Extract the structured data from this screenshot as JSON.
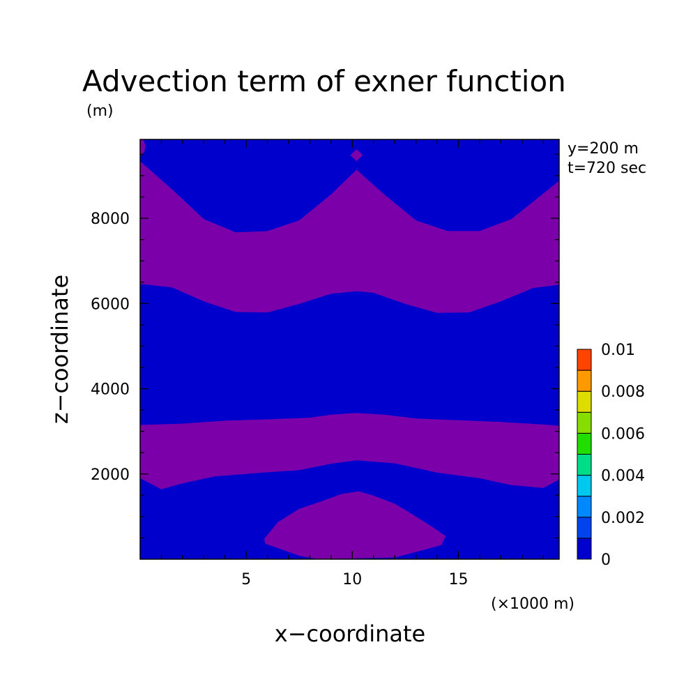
{
  "chart_data": {
    "type": "heatmap",
    "title": "Advection term of exner function",
    "ylabel_unit": "(m)",
    "xlabel": "x−coordinate",
    "ylabel": "z−coordinate",
    "x_unit": "(×1000 m)",
    "annotations": [
      "y=200 m",
      "t=720 sec"
    ],
    "xlim": [
      0,
      19.75
    ],
    "ylim": [
      0,
      9850
    ],
    "x_ticks": [
      5,
      10,
      15
    ],
    "x_tick_labels": [
      "5",
      "10",
      "15"
    ],
    "y_ticks": [
      2000,
      4000,
      6000,
      8000
    ],
    "y_tick_labels": [
      "2000",
      "4000",
      "6000",
      "8000"
    ],
    "grid": false,
    "colorbar": {
      "placement": "right",
      "levels": [
        0,
        0.001,
        0.002,
        0.003,
        0.004,
        0.005,
        0.006,
        0.007,
        0.008,
        0.009,
        0.01
      ],
      "labels": [
        "0",
        "0.002",
        "0.004",
        "0.006",
        "0.008",
        "0.01"
      ],
      "colors": [
        "#0000cc",
        "#0044ee",
        "#0088ff",
        "#00c8ee",
        "#00dd88",
        "#22dd00",
        "#88dd00",
        "#dddd00",
        "#ff9900",
        "#ff4400"
      ]
    },
    "background_color": "#0000cc",
    "regions": [
      {
        "name": "upper-band",
        "color": "#7b00aa",
        "boundary": [
          [
            0,
            9340
          ],
          [
            1.5,
            8680
          ],
          [
            3,
            7980
          ],
          [
            4.5,
            7670
          ],
          [
            6,
            7700
          ],
          [
            7.5,
            7950
          ],
          [
            9,
            8560
          ],
          [
            10.2,
            9140
          ],
          [
            11.5,
            8560
          ],
          [
            13,
            7950
          ],
          [
            14.5,
            7700
          ],
          [
            16,
            7700
          ],
          [
            17.5,
            7980
          ],
          [
            19,
            8580
          ],
          [
            19.75,
            8880
          ],
          [
            19.75,
            6440
          ],
          [
            18.5,
            6360
          ],
          [
            17,
            6050
          ],
          [
            15.5,
            5790
          ],
          [
            14,
            5780
          ],
          [
            12.5,
            5990
          ],
          [
            11,
            6250
          ],
          [
            10.2,
            6290
          ],
          [
            9,
            6230
          ],
          [
            7.5,
            5990
          ],
          [
            6,
            5790
          ],
          [
            4.5,
            5800
          ],
          [
            3,
            6050
          ],
          [
            1.5,
            6380
          ],
          [
            0,
            6460
          ]
        ]
      },
      {
        "name": "middle-band",
        "color": "#7b00aa",
        "boundary": [
          [
            0,
            3150
          ],
          [
            2,
            3180
          ],
          [
            4,
            3250
          ],
          [
            6,
            3280
          ],
          [
            8,
            3320
          ],
          [
            9,
            3390
          ],
          [
            10.2,
            3430
          ],
          [
            11.5,
            3390
          ],
          [
            13,
            3300
          ],
          [
            15,
            3260
          ],
          [
            17,
            3220
          ],
          [
            19,
            3160
          ],
          [
            19.75,
            3130
          ],
          [
            19.75,
            1870
          ],
          [
            19,
            1670
          ],
          [
            17.5,
            1740
          ],
          [
            16,
            1900
          ],
          [
            14,
            2030
          ],
          [
            12,
            2250
          ],
          [
            10.2,
            2320
          ],
          [
            9,
            2240
          ],
          [
            7.5,
            2090
          ],
          [
            5.5,
            2020
          ],
          [
            3.5,
            1940
          ],
          [
            2,
            1780
          ],
          [
            1,
            1640
          ],
          [
            0,
            1900
          ]
        ]
      },
      {
        "name": "lower-dome",
        "color": "#7b00aa",
        "boundary": [
          [
            5.85,
            480
          ],
          [
            6.5,
            870
          ],
          [
            7.5,
            1180
          ],
          [
            8.5,
            1350
          ],
          [
            9.5,
            1530
          ],
          [
            10.3,
            1590
          ],
          [
            11,
            1490
          ],
          [
            12,
            1300
          ],
          [
            13,
            1000
          ],
          [
            13.8,
            750
          ],
          [
            14.4,
            540
          ],
          [
            14.2,
            330
          ],
          [
            13,
            170
          ],
          [
            12,
            40
          ],
          [
            8.4,
            0
          ],
          [
            7.5,
            80
          ],
          [
            6.5,
            260
          ],
          [
            5.9,
            360
          ]
        ]
      },
      {
        "name": "top-left-patch",
        "color": "#7b00aa",
        "boundary": [
          [
            0,
            9450
          ],
          [
            0.2,
            9560
          ],
          [
            0.25,
            9700
          ],
          [
            0.15,
            9850
          ],
          [
            0,
            9850
          ]
        ]
      },
      {
        "name": "top-center-diamond",
        "color": "#7b00aa",
        "boundary": [
          [
            10.2,
            9340
          ],
          [
            10.5,
            9480
          ],
          [
            10.2,
            9620
          ],
          [
            9.9,
            9480
          ]
        ]
      }
    ]
  }
}
